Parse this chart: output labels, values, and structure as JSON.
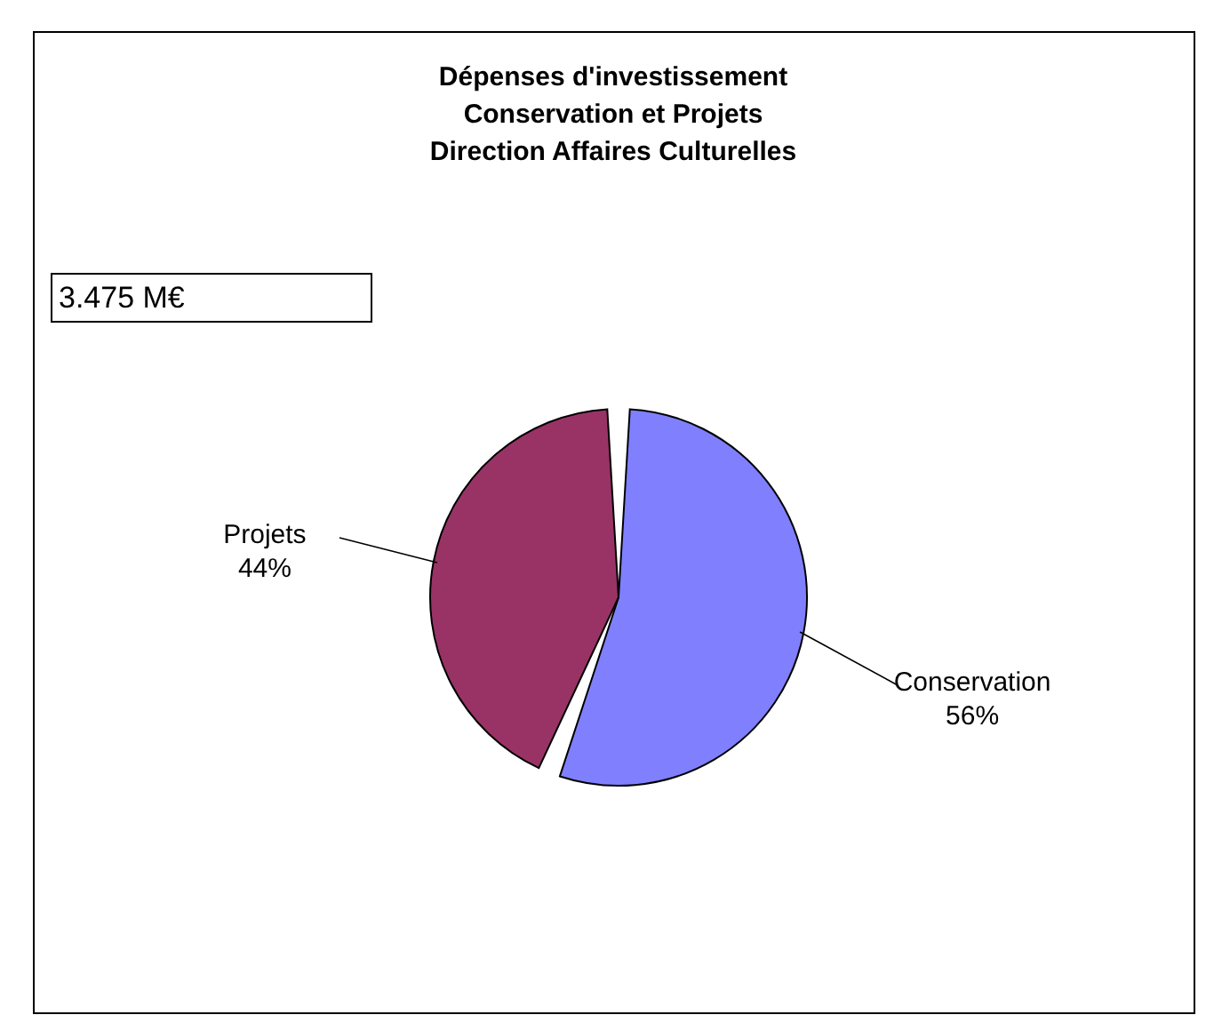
{
  "chart_data": {
    "type": "pie",
    "title": "Dépenses d'investissement\nConservation et Projets\nDirection Affaires Culturelles",
    "categories": [
      "Conservation",
      "Projets"
    ],
    "values": [
      56,
      44
    ],
    "colors": [
      "#8080ff",
      "#993366"
    ],
    "value_labels": [
      "56%",
      "44%"
    ],
    "annotations": [
      "3.475 M€"
    ]
  }
}
